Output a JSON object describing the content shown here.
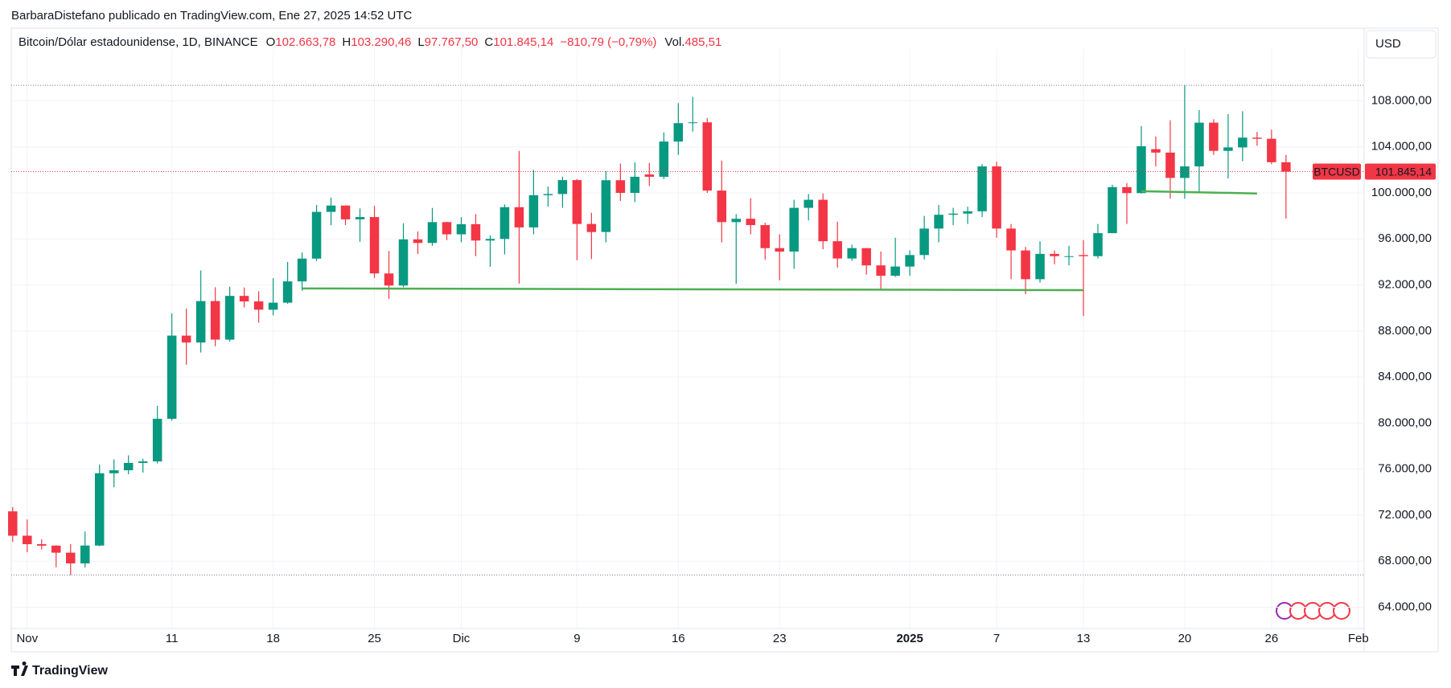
{
  "header": {
    "publisher": "BarbaraDistefano publicado en TradingView.com, Ene 27, 2025 14:52 UTC"
  },
  "legend": {
    "symbol": "Bitcoin/Dólar estadounidense, 1D, BINANCE",
    "open_key": "O",
    "open": "102.663,78",
    "high_key": "H",
    "high": "103.290,46",
    "low_key": "L",
    "low": "97.767,50",
    "close_key": "C",
    "close": "101.845,14",
    "change": "−810,79 (−0,79%)",
    "volume_key": "Vol.",
    "volume": "485,51"
  },
  "currency": "USD",
  "footer": {
    "logo": "TradingView"
  },
  "chart_data": {
    "type": "candlestick",
    "x": [
      -1,
      0,
      1,
      2,
      3,
      4,
      5,
      6,
      7,
      8,
      9,
      10,
      11,
      12,
      13,
      14,
      15,
      16,
      17,
      18,
      19,
      20,
      21,
      22,
      23,
      24,
      25,
      26,
      27,
      28,
      29,
      30,
      31,
      32,
      33,
      34,
      35,
      36,
      37,
      38,
      39,
      40,
      41,
      42,
      43,
      44,
      45,
      46,
      47,
      48,
      49,
      50,
      51,
      52,
      53,
      54,
      55,
      56,
      57,
      58,
      59,
      60,
      61,
      62,
      63,
      64,
      65,
      66,
      67,
      68,
      69,
      70,
      71,
      72,
      73,
      74,
      75,
      76,
      77,
      78,
      79,
      80,
      81,
      82,
      83,
      84,
      85,
      86,
      87
    ],
    "open": [
      72330,
      70215,
      69480,
      69350,
      68740,
      67810,
      69360,
      75640,
      75900,
      76540,
      76670,
      80370,
      87600,
      87000,
      90600,
      87250,
      91050,
      90570,
      89850,
      90460,
      92310,
      94290,
      98350,
      98900,
      97700,
      97900,
      93000,
      91950,
      95960,
      95650,
      97460,
      96400,
      97280,
      95860,
      96000,
      98760,
      97000,
      99800,
      99900,
      101110,
      97300,
      96600,
      101100,
      100000,
      101600,
      101400,
      104460,
      106060,
      106130,
      100200,
      97460,
      97750,
      97200,
      95200,
      94900,
      98700,
      99400,
      95800,
      94300,
      95200,
      93700,
      92800,
      93600,
      94600,
      96900,
      98100,
      98200,
      98400,
      102300,
      96900,
      95000,
      92500,
      94700,
      94500,
      94600,
      94500,
      96500,
      100500,
      99980,
      103800,
      103500,
      101300,
      102300,
      106100,
      103650,
      103950,
      104800,
      104700,
      102663.78
    ],
    "high": [
      72700,
      71630,
      69900,
      69400,
      69480,
      70580,
      76400,
      76850,
      77200,
      76900,
      81500,
      89530,
      89940,
      93260,
      91800,
      91850,
      91780,
      91450,
      92590,
      94000,
      94830,
      98950,
      99590,
      98920,
      98650,
      98870,
      94960,
      97360,
      96650,
      98690,
      97500,
      97900,
      98150,
      96300,
      99000,
      103650,
      102000,
      100550,
      101400,
      101200,
      98270,
      101900,
      102540,
      102650,
      102600,
      105250,
      107800,
      108350,
      106500,
      102800,
      98150,
      99540,
      97400,
      96400,
      99400,
      99900,
      99950,
      97500,
      95500,
      95200,
      94900,
      96100,
      95000,
      98000,
      98950,
      98700,
      98800,
      102500,
      102700,
      97300,
      95300,
      95800,
      95000,
      95400,
      95900,
      97300,
      100700,
      100850,
      105800,
      104900,
      106300,
      109350,
      107200,
      106400,
      106850,
      107100,
      105300,
      105500,
      103290.46
    ],
    "low": [
      69680,
      68780,
      69020,
      67480,
      66800,
      67450,
      69300,
      74420,
      75560,
      75700,
      76490,
      80220,
      85070,
      86130,
      86670,
      87080,
      90050,
      88720,
      89350,
      90370,
      91500,
      94080,
      97180,
      97200,
      95750,
      92600,
      90790,
      91800,
      94680,
      95400,
      95900,
      95700,
      94500,
      93580,
      94660,
      92120,
      96400,
      98800,
      98700,
      94150,
      94250,
      95700,
      99300,
      99200,
      100600,
      101200,
      103300,
      105320,
      100000,
      95700,
      92100,
      96400,
      94200,
      92400,
      93400,
      97600,
      95100,
      93500,
      94100,
      92900,
      91500,
      92700,
      92800,
      94200,
      95700,
      97200,
      97300,
      97900,
      96100,
      92500,
      91200,
      92200,
      93800,
      93700,
      89300,
      94300,
      96500,
      97300,
      99950,
      102300,
      99500,
      99500,
      100100,
      103300,
      101250,
      102750,
      104100,
      102500,
      97767.5
    ],
    "close": [
      70215,
      69480,
      69350,
      68740,
      67810,
      69360,
      75640,
      75900,
      76540,
      76670,
      80370,
      87600,
      87000,
      90600,
      87250,
      91050,
      90570,
      89850,
      90460,
      92310,
      94290,
      98350,
      98900,
      97700,
      97900,
      93000,
      91950,
      95960,
      95650,
      97460,
      96400,
      97280,
      95860,
      96000,
      98760,
      97000,
      99800,
      99900,
      101110,
      97300,
      96600,
      101100,
      100000,
      101400,
      101400,
      104460,
      106060,
      106130,
      100200,
      97460,
      97750,
      97200,
      95200,
      94900,
      98700,
      99400,
      95800,
      94300,
      95200,
      93700,
      92800,
      93600,
      94600,
      96900,
      98100,
      98200,
      98400,
      102300,
      96900,
      95000,
      92500,
      94700,
      94500,
      94500,
      94500,
      96500,
      100500,
      99980,
      104050,
      103500,
      101300,
      102300,
      106100,
      103650,
      103950,
      104800,
      104700,
      102663.78,
      101845.14
    ],
    "up_color": "#089981",
    "down_color": "#f23645",
    "xlim": [
      -1.1,
      92.4
    ],
    "xticks": [
      {
        "value": 0,
        "label": "Nov"
      },
      {
        "value": 10,
        "label": "11"
      },
      {
        "value": 17,
        "label": "18"
      },
      {
        "value": 24,
        "label": "25"
      },
      {
        "value": 30,
        "label": "Dic"
      },
      {
        "value": 38,
        "label": "9"
      },
      {
        "value": 45,
        "label": "16"
      },
      {
        "value": 52,
        "label": "23"
      },
      {
        "value": 61,
        "label": "2025",
        "bold": true
      },
      {
        "value": 67,
        "label": "7"
      },
      {
        "value": 73,
        "label": "13"
      },
      {
        "value": 80,
        "label": "20"
      },
      {
        "value": 86,
        "label": "26"
      },
      {
        "value": 92,
        "label": "Feb"
      }
    ],
    "ylim": [
      62150,
      111800
    ],
    "yticks": [
      {
        "value": 64000,
        "label": "64.000,00"
      },
      {
        "value": 68000,
        "label": "68.000,00"
      },
      {
        "value": 72000,
        "label": "72.000,00"
      },
      {
        "value": 76000,
        "label": "76.000,00"
      },
      {
        "value": 80000,
        "label": "80.000,00"
      },
      {
        "value": 84000,
        "label": "84.000,00"
      },
      {
        "value": 88000,
        "label": "88.000,00"
      },
      {
        "value": 92000,
        "label": "92.000,00"
      },
      {
        "value": 96000,
        "label": "96.000,00"
      },
      {
        "value": 100000,
        "label": "100.000,00"
      },
      {
        "value": 104000,
        "label": "104.000,00"
      },
      {
        "value": 108000,
        "label": "108.000,00"
      }
    ],
    "grid": true,
    "last_price": {
      "symbol": "BTCUSD",
      "label": "101.845,14"
    },
    "drawings": [
      {
        "points": [
          [
            19,
            91700
          ],
          [
            73,
            91550
          ]
        ],
        "color": "#4caf50"
      },
      {
        "points": [
          [
            77,
            100150
          ],
          [
            85,
            99950
          ]
        ],
        "color": "#4caf50"
      }
    ]
  }
}
